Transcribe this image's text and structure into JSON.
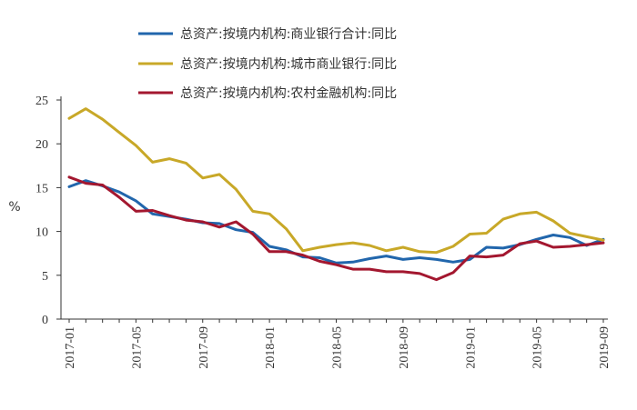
{
  "chart_data": {
    "type": "line",
    "ylabel": "%",
    "ylim": [
      0,
      25
    ],
    "yticks": [
      0,
      5,
      10,
      15,
      20,
      25
    ],
    "grid": false,
    "legend_position": "top",
    "x": [
      "2017-01",
      "2017-02",
      "2017-03",
      "2017-04",
      "2017-05",
      "2017-06",
      "2017-07",
      "2017-08",
      "2017-09",
      "2017-10",
      "2017-11",
      "2017-12",
      "2018-01",
      "2018-02",
      "2018-03",
      "2018-04",
      "2018-05",
      "2018-06",
      "2018-07",
      "2018-08",
      "2018-09",
      "2018-10",
      "2018-11",
      "2018-12",
      "2019-01",
      "2019-02",
      "2019-03",
      "2019-04",
      "2019-05",
      "2019-06",
      "2019-07",
      "2019-08",
      "2019-09"
    ],
    "xtick_labels": [
      "2017-01",
      "2017-05",
      "2017-09",
      "2018-01",
      "2018-05",
      "2018-09",
      "2019-01",
      "2019-05",
      "2019-09"
    ],
    "series": [
      {
        "name": "总资产:按境内机构:商业银行合计:同比",
        "color": "#2166ac",
        "values": [
          15.1,
          15.8,
          15.2,
          14.5,
          13.5,
          12.0,
          11.7,
          11.4,
          11.0,
          10.9,
          10.2,
          9.9,
          8.3,
          7.9,
          7.1,
          7.0,
          6.4,
          6.5,
          6.9,
          7.2,
          6.8,
          7.0,
          6.8,
          6.5,
          6.8,
          8.2,
          8.1,
          8.5,
          9.1,
          9.6,
          9.3,
          8.4,
          9.1
        ]
      },
      {
        "name": "总资产:按境内机构:城市商业银行:同比",
        "color": "#c8a828",
        "values": [
          22.9,
          24.0,
          22.8,
          21.3,
          19.8,
          17.9,
          18.3,
          17.8,
          16.1,
          16.5,
          14.8,
          12.3,
          12.0,
          10.3,
          7.8,
          8.2,
          8.5,
          8.7,
          8.4,
          7.8,
          8.2,
          7.7,
          7.6,
          8.3,
          9.7,
          9.8,
          11.4,
          12.0,
          12.2,
          11.2,
          9.8,
          9.4,
          9.0
        ]
      },
      {
        "name": "总资产:按境内机构:农村金融机构:同比",
        "color": "#a3172f",
        "values": [
          16.2,
          15.5,
          15.3,
          13.9,
          12.3,
          12.4,
          11.8,
          11.3,
          11.1,
          10.5,
          11.1,
          9.7,
          7.7,
          7.7,
          7.3,
          6.6,
          6.2,
          5.7,
          5.7,
          5.4,
          5.4,
          5.2,
          4.5,
          5.3,
          7.2,
          7.1,
          7.3,
          8.6,
          8.9,
          8.2,
          8.3,
          8.5,
          8.7
        ]
      }
    ]
  }
}
